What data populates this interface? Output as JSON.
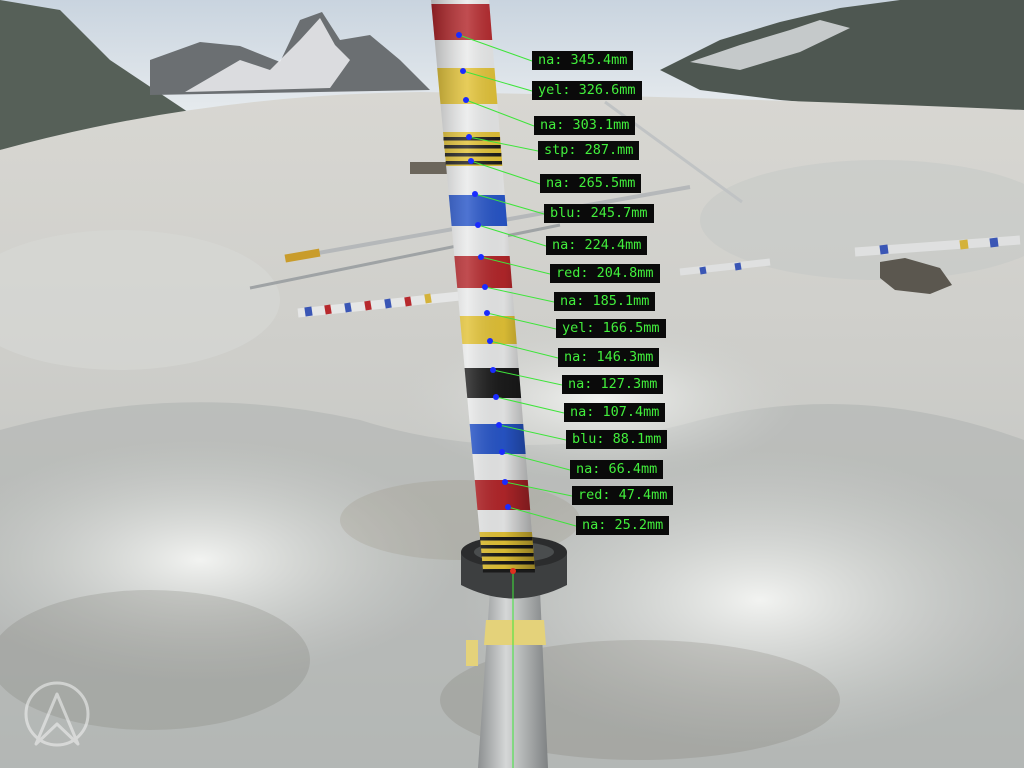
{
  "image": {
    "description": "Glacier ablation stake with colored bands, overlaid with detected band labels and distances"
  },
  "colors": {
    "overlay_line": "#3ee53a",
    "overlay_point": "#1a2bff",
    "overlay_text": "#42ee3c",
    "label_bg": "#0a0a0a",
    "band_red": "#b3262a",
    "band_yellow": "#e2c236",
    "band_blue": "#2755c8",
    "band_black": "#1c1c1c",
    "band_white": "#e9eaea"
  },
  "measurements": [
    {
      "label": "na: 345.4mm"
    },
    {
      "label": "yel: 326.6mm"
    },
    {
      "label": "na: 303.1mm"
    },
    {
      "label": "stp: 287.mm"
    },
    {
      "label": "na: 265.5mm"
    },
    {
      "label": "blu: 245.7mm"
    },
    {
      "label": "na: 224.4mm"
    },
    {
      "label": "red: 204.8mm"
    },
    {
      "label": "na: 185.1mm"
    },
    {
      "label": "yel: 166.5mm"
    },
    {
      "label": "na: 146.3mm"
    },
    {
      "label": "na: 127.3mm"
    },
    {
      "label": "na: 107.4mm"
    },
    {
      "label": "blu: 88.1mm"
    },
    {
      "label": "na: 66.4mm"
    },
    {
      "label": "red: 47.4mm"
    },
    {
      "label": "na: 25.2mm"
    }
  ],
  "logo": {
    "icon": "arrow-in-circle-logo-icon"
  }
}
